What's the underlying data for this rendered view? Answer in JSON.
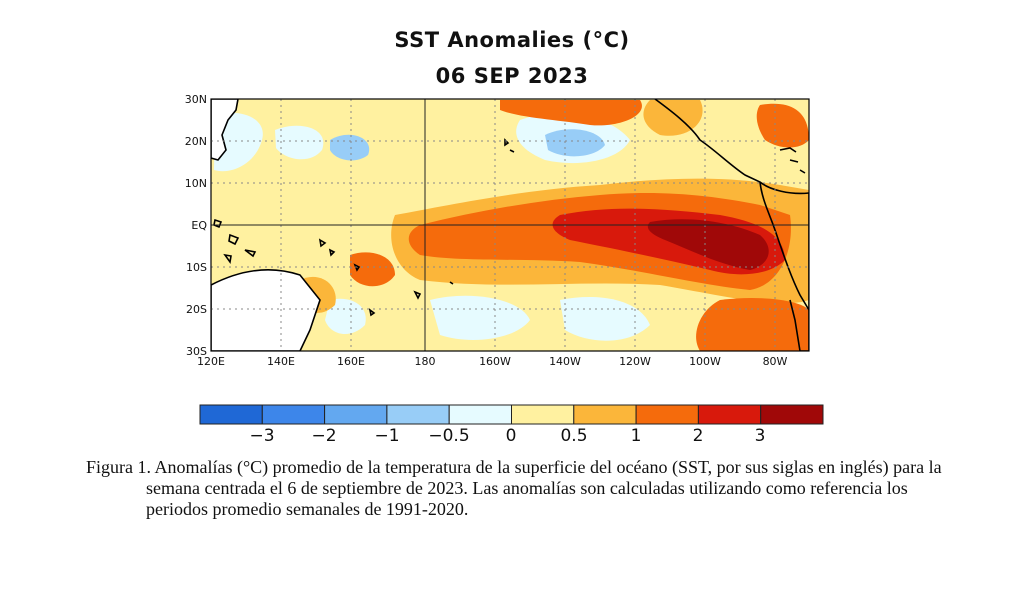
{
  "title": "SST Anomalies (°C)",
  "date": "06 SEP 2023",
  "map": {
    "lat_labels": [
      "30N",
      "20N",
      "10N",
      "EQ",
      "10S",
      "20S",
      "30S"
    ],
    "lon_labels": [
      "120E",
      "140E",
      "160E",
      "180",
      "160W",
      "140W",
      "120W",
      "100W",
      "80W"
    ],
    "lat_range": [
      -30,
      30
    ],
    "lon_range": [
      120,
      290
    ]
  },
  "colorbar": {
    "labels": [
      "−3",
      "−2",
      "−1",
      "−0.5",
      "0",
      "0.5",
      "1",
      "2",
      "3"
    ],
    "colors": [
      "#1f68d6",
      "#3d86ea",
      "#63a8f0",
      "#98cdf7",
      "#e6fbff",
      "#fff1a0",
      "#fbb63a",
      "#f56b0c",
      "#d8190c",
      "#a00808"
    ]
  },
  "chart_data": {
    "type": "heatmap",
    "variable": "Sea Surface Temperature anomaly",
    "units": "°C",
    "title": "SST Anomalies (°C)",
    "subtitle": "06 SEP 2023",
    "levels": [
      -3,
      -2,
      -1,
      -0.5,
      0,
      0.5,
      1,
      2,
      3
    ]
  },
  "caption": "Figura 1. Anomalías (°C) promedio de la temperatura de la superficie del océano (SST, por sus siglas en inglés) para la semana centrada el 6 de septiembre de 2023. Las anomalías son calculadas utilizando como referencia los periodos promedio semanales de 1991-2020."
}
